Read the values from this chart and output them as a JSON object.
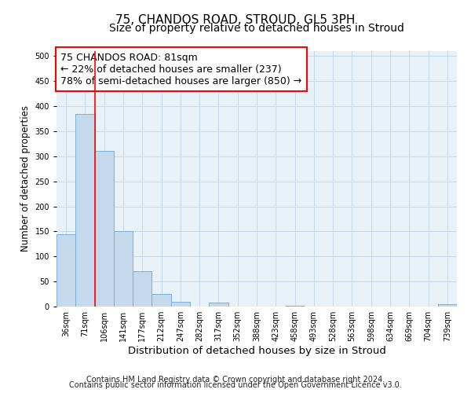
{
  "title": "75, CHANDOS ROAD, STROUD, GL5 3PH",
  "subtitle": "Size of property relative to detached houses in Stroud",
  "xlabel": "Distribution of detached houses by size in Stroud",
  "ylabel": "Number of detached properties",
  "categories": [
    "36sqm",
    "71sqm",
    "106sqm",
    "141sqm",
    "177sqm",
    "212sqm",
    "247sqm",
    "282sqm",
    "317sqm",
    "352sqm",
    "388sqm",
    "423sqm",
    "458sqm",
    "493sqm",
    "528sqm",
    "563sqm",
    "598sqm",
    "634sqm",
    "669sqm",
    "704sqm",
    "739sqm"
  ],
  "values": [
    145,
    385,
    310,
    150,
    70,
    25,
    10,
    0,
    8,
    0,
    0,
    0,
    2,
    0,
    0,
    0,
    0,
    0,
    0,
    0,
    5
  ],
  "bar_color": "#c5d9ed",
  "bar_edge_color": "#7aafd4",
  "grid_color": "#c8d8e8",
  "background_color": "#e8f0f8",
  "annotation_text": "75 CHANDOS ROAD: 81sqm\n← 22% of detached houses are smaller (237)\n78% of semi-detached houses are larger (850) →",
  "redline_x": 1.5,
  "ylim": [
    0,
    510
  ],
  "yticks": [
    0,
    50,
    100,
    150,
    200,
    250,
    300,
    350,
    400,
    450,
    500
  ],
  "footer_line1": "Contains HM Land Registry data © Crown copyright and database right 2024.",
  "footer_line2": "Contains public sector information licensed under the Open Government Licence v3.0.",
  "title_fontsize": 11,
  "subtitle_fontsize": 10,
  "xlabel_fontsize": 9.5,
  "ylabel_fontsize": 8.5,
  "tick_fontsize": 7,
  "annotation_fontsize": 9,
  "footer_fontsize": 7
}
